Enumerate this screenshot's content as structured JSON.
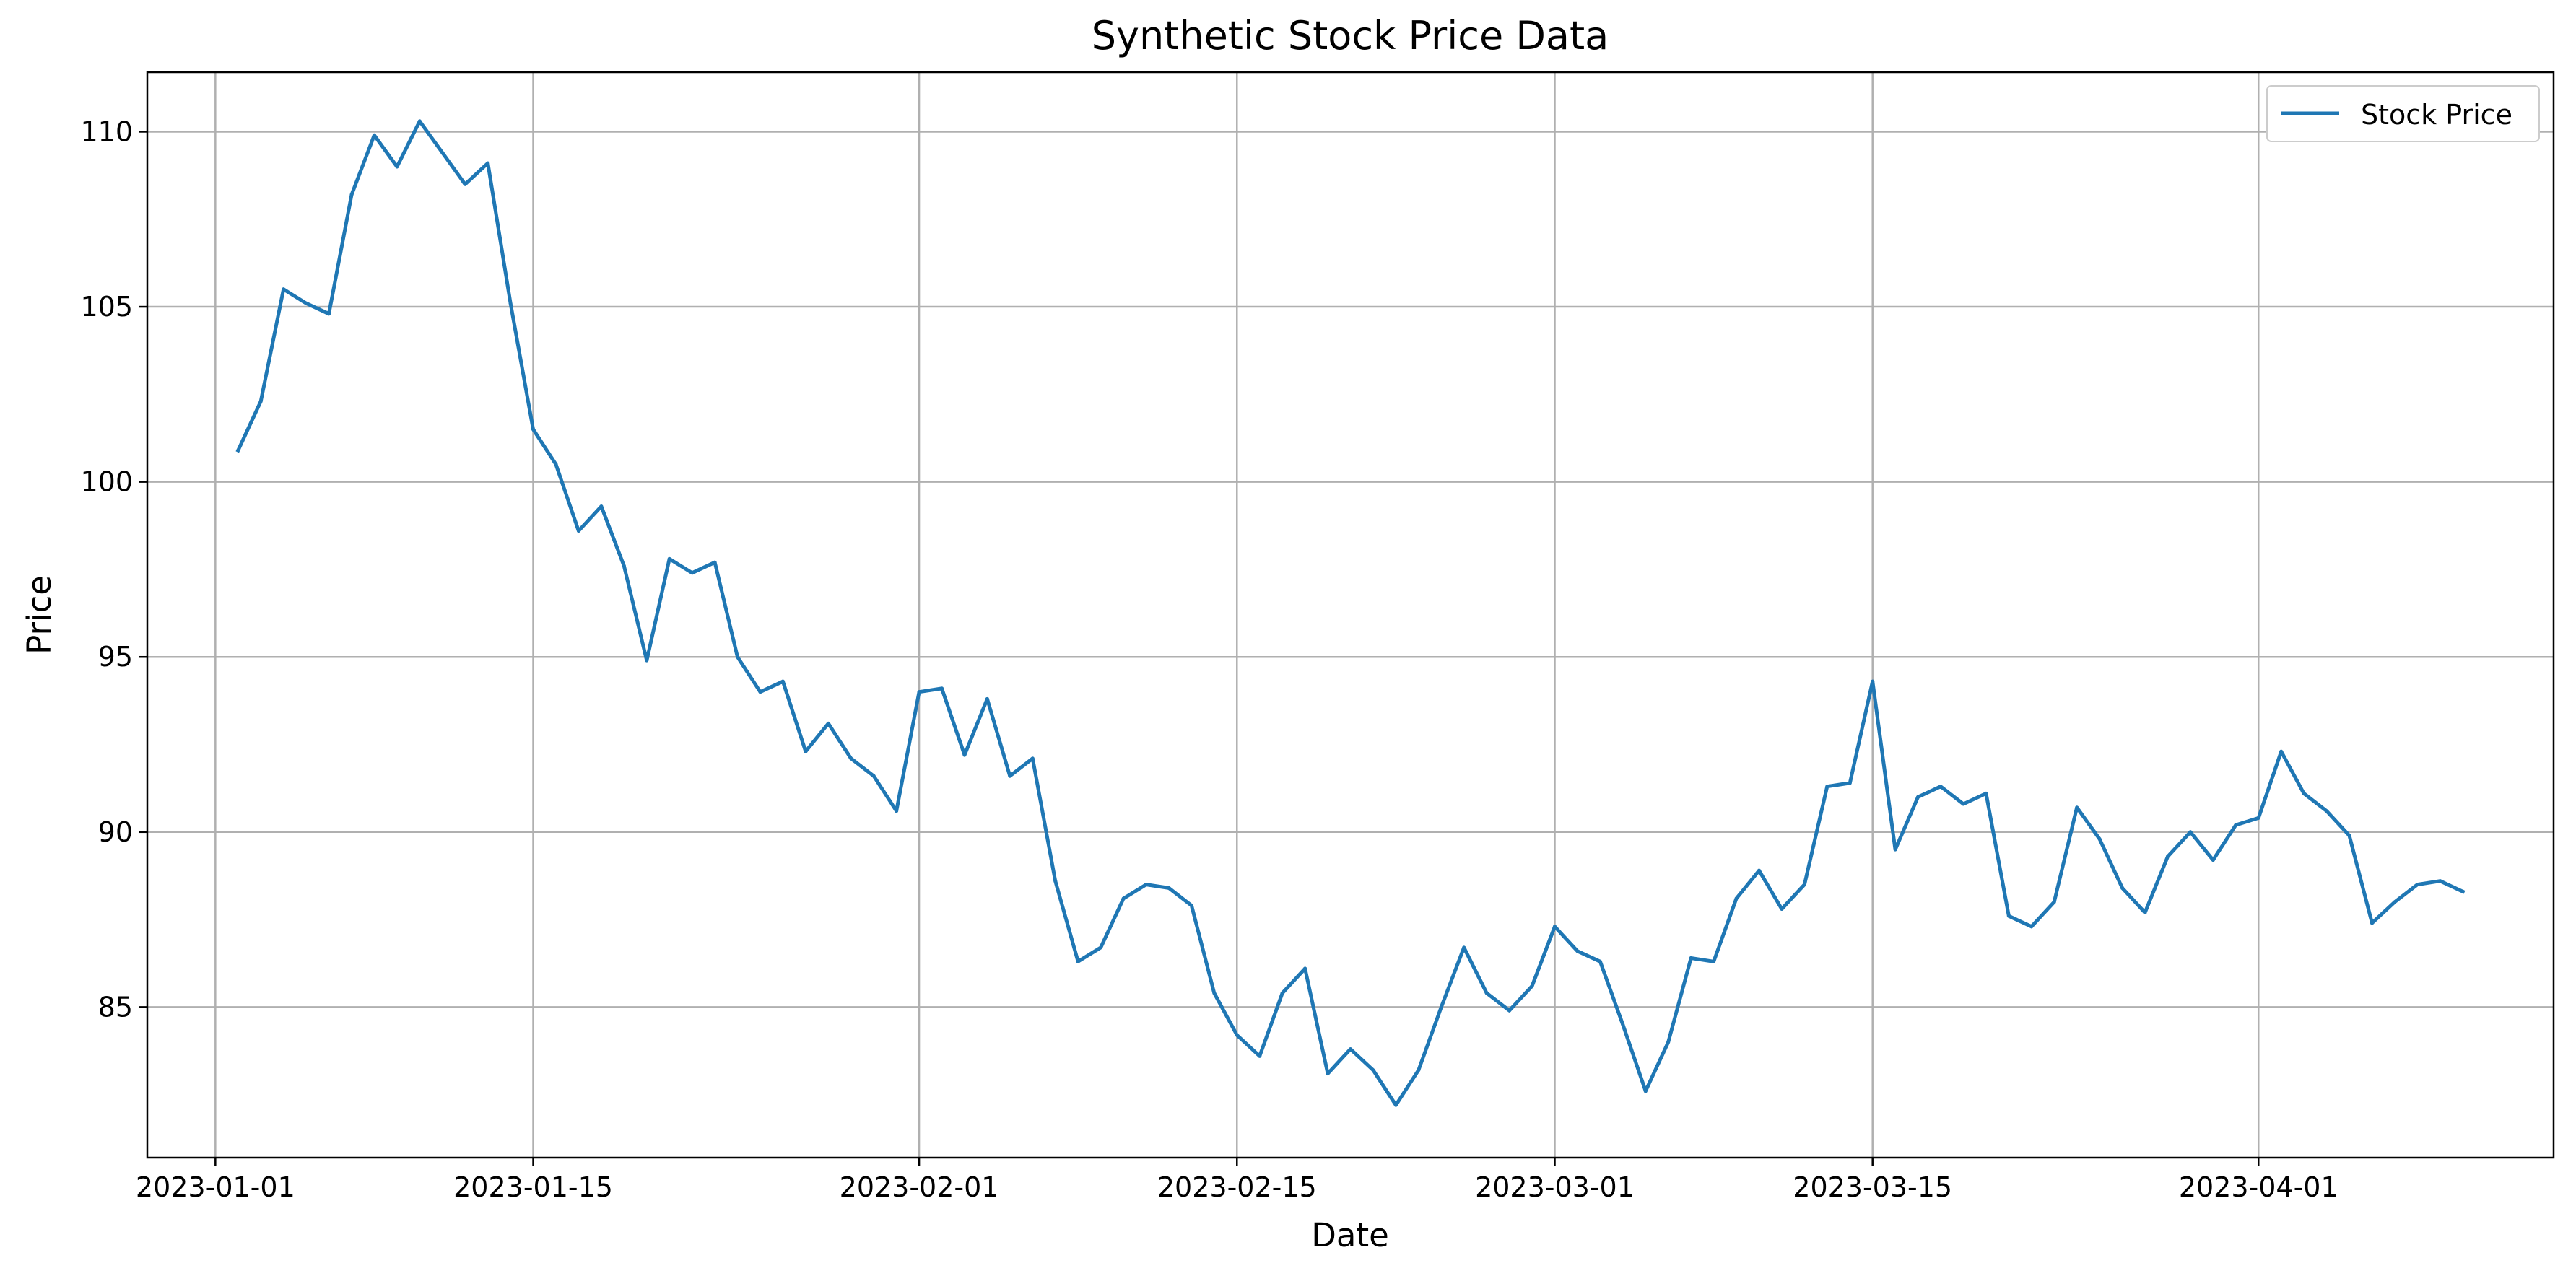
{
  "chart_data": {
    "type": "line",
    "title": "Synthetic Stock Price Data",
    "xlabel": "Date",
    "ylabel": "Price",
    "x_ticks": [
      "2023-01-01",
      "2023-01-15",
      "2023-02-01",
      "2023-02-15",
      "2023-03-01",
      "2023-03-15",
      "2023-04-01"
    ],
    "y_ticks": [
      85,
      90,
      95,
      100,
      105,
      110
    ],
    "xlim": [
      "2022-12-29",
      "2023-04-14"
    ],
    "ylim": [
      80.7,
      111.7
    ],
    "grid": true,
    "legend_position": "top-right",
    "series": [
      {
        "name": "Stock Price",
        "color": "#1f77b4",
        "points": [
          [
            "2023-01-02",
            100.9
          ],
          [
            "2023-01-03",
            102.3
          ],
          [
            "2023-01-04",
            105.5
          ],
          [
            "2023-01-05",
            105.1
          ],
          [
            "2023-01-06",
            104.8
          ],
          [
            "2023-01-07",
            108.2
          ],
          [
            "2023-01-08",
            109.9
          ],
          [
            "2023-01-09",
            109.0
          ],
          [
            "2023-01-10",
            110.3
          ],
          [
            "2023-01-11",
            109.4
          ],
          [
            "2023-01-12",
            108.5
          ],
          [
            "2023-01-13",
            109.1
          ],
          [
            "2023-01-14",
            105.1
          ],
          [
            "2023-01-15",
            101.5
          ],
          [
            "2023-01-16",
            100.5
          ],
          [
            "2023-01-17",
            98.6
          ],
          [
            "2023-01-18",
            99.3
          ],
          [
            "2023-01-19",
            97.6
          ],
          [
            "2023-01-20",
            94.9
          ],
          [
            "2023-01-21",
            97.8
          ],
          [
            "2023-01-22",
            97.4
          ],
          [
            "2023-01-23",
            97.7
          ],
          [
            "2023-01-24",
            95.0
          ],
          [
            "2023-01-25",
            94.0
          ],
          [
            "2023-01-26",
            94.3
          ],
          [
            "2023-01-27",
            92.3
          ],
          [
            "2023-01-28",
            93.1
          ],
          [
            "2023-01-29",
            92.1
          ],
          [
            "2023-01-30",
            91.6
          ],
          [
            "2023-01-31",
            90.6
          ],
          [
            "2023-02-01",
            94.0
          ],
          [
            "2023-02-02",
            94.1
          ],
          [
            "2023-02-03",
            92.2
          ],
          [
            "2023-02-04",
            93.8
          ],
          [
            "2023-02-05",
            91.6
          ],
          [
            "2023-02-06",
            92.1
          ],
          [
            "2023-02-07",
            88.6
          ],
          [
            "2023-02-08",
            86.3
          ],
          [
            "2023-02-09",
            86.7
          ],
          [
            "2023-02-10",
            88.1
          ],
          [
            "2023-02-11",
            88.5
          ],
          [
            "2023-02-12",
            88.4
          ],
          [
            "2023-02-13",
            87.9
          ],
          [
            "2023-02-14",
            85.4
          ],
          [
            "2023-02-15",
            84.2
          ],
          [
            "2023-02-16",
            83.6
          ],
          [
            "2023-02-17",
            85.4
          ],
          [
            "2023-02-18",
            86.1
          ],
          [
            "2023-02-19",
            83.1
          ],
          [
            "2023-02-20",
            83.8
          ],
          [
            "2023-02-21",
            83.2
          ],
          [
            "2023-02-22",
            82.2
          ],
          [
            "2023-02-23",
            83.2
          ],
          [
            "2023-02-24",
            85.0
          ],
          [
            "2023-02-25",
            86.7
          ],
          [
            "2023-02-26",
            85.4
          ],
          [
            "2023-02-27",
            84.9
          ],
          [
            "2023-02-28",
            85.6
          ],
          [
            "2023-03-01",
            87.3
          ],
          [
            "2023-03-02",
            86.6
          ],
          [
            "2023-03-03",
            86.3
          ],
          [
            "2023-03-04",
            84.5
          ],
          [
            "2023-03-05",
            82.6
          ],
          [
            "2023-03-06",
            84.0
          ],
          [
            "2023-03-07",
            86.4
          ],
          [
            "2023-03-08",
            86.3
          ],
          [
            "2023-03-09",
            88.1
          ],
          [
            "2023-03-10",
            88.9
          ],
          [
            "2023-03-11",
            87.8
          ],
          [
            "2023-03-12",
            88.5
          ],
          [
            "2023-03-13",
            91.3
          ],
          [
            "2023-03-14",
            91.4
          ],
          [
            "2023-03-15",
            94.3
          ],
          [
            "2023-03-16",
            89.5
          ],
          [
            "2023-03-17",
            91.0
          ],
          [
            "2023-03-18",
            91.3
          ],
          [
            "2023-03-19",
            90.8
          ],
          [
            "2023-03-20",
            91.1
          ],
          [
            "2023-03-21",
            87.6
          ],
          [
            "2023-03-22",
            87.3
          ],
          [
            "2023-03-23",
            88.0
          ],
          [
            "2023-03-24",
            90.7
          ],
          [
            "2023-03-25",
            89.8
          ],
          [
            "2023-03-26",
            88.4
          ],
          [
            "2023-03-27",
            87.7
          ],
          [
            "2023-03-28",
            89.3
          ],
          [
            "2023-03-29",
            90.0
          ],
          [
            "2023-03-30",
            89.2
          ],
          [
            "2023-03-31",
            90.2
          ],
          [
            "2023-04-01",
            90.4
          ],
          [
            "2023-04-02",
            92.3
          ],
          [
            "2023-04-03",
            91.1
          ],
          [
            "2023-04-04",
            90.6
          ],
          [
            "2023-04-05",
            89.9
          ],
          [
            "2023-04-06",
            87.4
          ],
          [
            "2023-04-07",
            88.0
          ],
          [
            "2023-04-08",
            88.5
          ],
          [
            "2023-04-09",
            88.6
          ],
          [
            "2023-04-10",
            88.3
          ]
        ]
      }
    ]
  }
}
